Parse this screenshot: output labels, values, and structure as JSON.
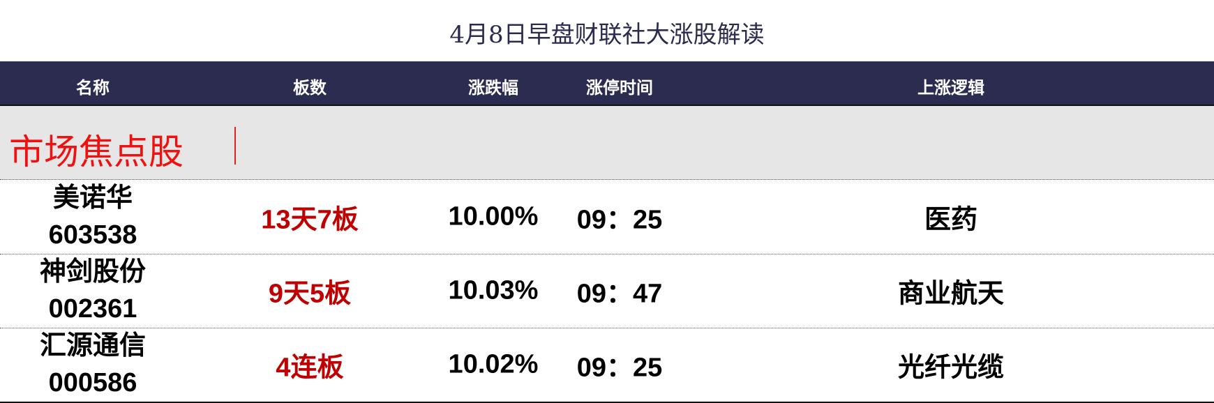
{
  "title": "4月8日早盘财联社大涨股解读",
  "columns": [
    "名称",
    "板数",
    "涨跌幅",
    "涨停时间",
    "上涨逻辑"
  ],
  "section": "市场焦点股",
  "rows": [
    {
      "name": "美诺华",
      "code": "603538",
      "boards": "13天7板",
      "change": "10.00%",
      "time": "09：25",
      "logic": "医药"
    },
    {
      "name": "神剑股份",
      "code": "002361",
      "boards": "9天5板",
      "change": "10.03%",
      "time": "09：47",
      "logic": "商业航天"
    },
    {
      "name": "汇源通信",
      "code": "000586",
      "boards": "4连板",
      "change": "10.02%",
      "time": "09：25",
      "logic": "光纤光缆"
    }
  ],
  "colors": {
    "header_bg": "#2c2c50",
    "section_bg": "#e6e6e6",
    "accent_red": "#c00000"
  }
}
